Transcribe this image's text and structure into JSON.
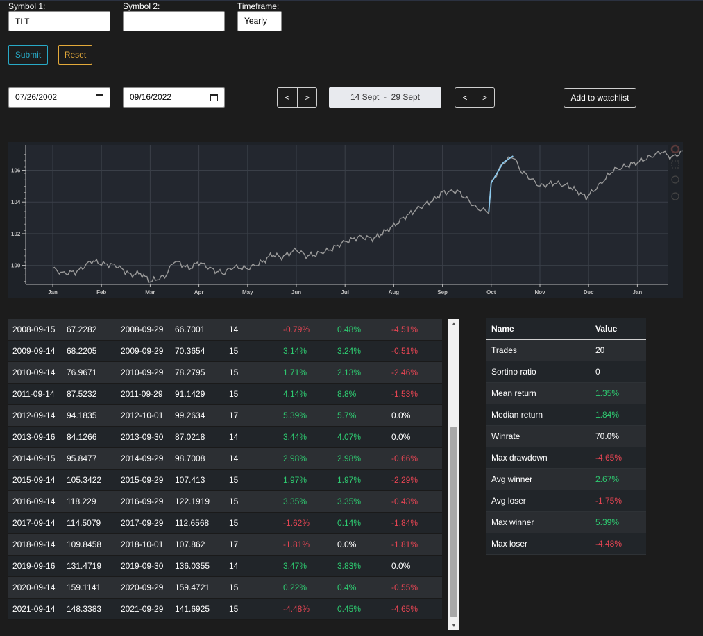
{
  "form": {
    "symbol1_label": "Symbol 1:",
    "symbol1_value": "TLT",
    "symbol2_label": "Symbol 2:",
    "symbol2_value": "",
    "timeframe_label": "Timeframe:",
    "timeframe_value": "Yearly",
    "submit_label": "Submit",
    "reset_label": "Reset",
    "start_date": "07/26/2002",
    "end_date": "09/16/2022",
    "prev_label": "<",
    "next_label": ">",
    "range_display": "14 Sept  -  29 Sept",
    "watchlist_label": "Add to watchlist"
  },
  "chart_data": {
    "type": "line",
    "x_ticks": [
      "Jan",
      "Feb",
      "Mar",
      "Apr",
      "May",
      "Jun",
      "Jul",
      "Aug",
      "Sep",
      "Oct",
      "Nov",
      "Dec",
      "Jan"
    ],
    "y_ticks": [
      100,
      102,
      104,
      106
    ],
    "ylim": [
      98.8,
      107.6
    ],
    "grid": true,
    "series": [
      {
        "color": "#9a9a9a",
        "points": [
          [
            0.0,
            99.8
          ],
          [
            0.2,
            99.5
          ],
          [
            0.5,
            99.6
          ],
          [
            0.8,
            100.3
          ],
          [
            1.0,
            100.1
          ],
          [
            1.3,
            100.0
          ],
          [
            1.6,
            99.4
          ],
          [
            1.8,
            99.5
          ],
          [
            2.0,
            99.0
          ],
          [
            2.3,
            99.3
          ],
          [
            2.5,
            100.3
          ],
          [
            2.8,
            99.8
          ],
          [
            3.0,
            100.2
          ],
          [
            3.3,
            99.7
          ],
          [
            3.5,
            99.5
          ],
          [
            3.7,
            99.9
          ],
          [
            4.0,
            99.8
          ],
          [
            4.3,
            100.2
          ],
          [
            4.5,
            100.7
          ],
          [
            4.7,
            100.5
          ],
          [
            5.0,
            101.0
          ],
          [
            5.2,
            100.6
          ],
          [
            5.4,
            100.7
          ],
          [
            5.7,
            101.0
          ],
          [
            6.0,
            101.5
          ],
          [
            6.3,
            101.8
          ],
          [
            6.6,
            101.7
          ],
          [
            6.8,
            102.1
          ],
          [
            7.0,
            102.5
          ],
          [
            7.2,
            103.0
          ],
          [
            7.5,
            103.6
          ],
          [
            7.8,
            104.1
          ],
          [
            8.0,
            104.6
          ],
          [
            8.3,
            104.7
          ],
          [
            8.5,
            104.2
          ],
          [
            8.7,
            103.6
          ],
          [
            8.95,
            103.4
          ],
          [
            9.0,
            105.2
          ],
          [
            9.25,
            106.5
          ],
          [
            9.45,
            106.9
          ],
          [
            9.6,
            106.0
          ],
          [
            9.8,
            105.5
          ],
          [
            10.0,
            105.0
          ],
          [
            10.3,
            105.2
          ],
          [
            10.6,
            105.0
          ],
          [
            10.8,
            104.6
          ],
          [
            10.95,
            104.3
          ],
          [
            11.2,
            105.0
          ],
          [
            11.5,
            106.0
          ],
          [
            11.8,
            106.3
          ],
          [
            12.0,
            106.5
          ],
          [
            12.3,
            106.9
          ],
          [
            12.5,
            107.2
          ],
          [
            12.7,
            106.8
          ],
          [
            13.0,
            107.3
          ]
        ]
      },
      {
        "color": "#8cc8ec",
        "points": [
          [
            8.95,
            103.4
          ],
          [
            9.0,
            105.2
          ],
          [
            9.25,
            106.5
          ],
          [
            9.45,
            106.9
          ]
        ]
      }
    ]
  },
  "trades": [
    [
      "2008-09-15",
      "67.2282",
      "2008-09-29",
      "66.7001",
      "14",
      "-0.79%",
      "0.48%",
      "-4.51%"
    ],
    [
      "2009-09-14",
      "68.2205",
      "2009-09-29",
      "70.3654",
      "15",
      "3.14%",
      "3.24%",
      "-0.51%"
    ],
    [
      "2010-09-14",
      "76.9671",
      "2010-09-29",
      "78.2795",
      "15",
      "1.71%",
      "2.13%",
      "-2.46%"
    ],
    [
      "2011-09-14",
      "87.5232",
      "2011-09-29",
      "91.1429",
      "15",
      "4.14%",
      "8.8%",
      "-1.53%"
    ],
    [
      "2012-09-14",
      "94.1835",
      "2012-10-01",
      "99.2634",
      "17",
      "5.39%",
      "5.7%",
      "0.0%"
    ],
    [
      "2013-09-16",
      "84.1266",
      "2013-09-30",
      "87.0218",
      "14",
      "3.44%",
      "4.07%",
      "0.0%"
    ],
    [
      "2014-09-15",
      "95.8477",
      "2014-09-29",
      "98.7008",
      "14",
      "2.98%",
      "2.98%",
      "-0.66%"
    ],
    [
      "2015-09-14",
      "105.3422",
      "2015-09-29",
      "107.413",
      "15",
      "1.97%",
      "1.97%",
      "-2.29%"
    ],
    [
      "2016-09-14",
      "118.229",
      "2016-09-29",
      "122.1919",
      "15",
      "3.35%",
      "3.35%",
      "-0.43%"
    ],
    [
      "2017-09-14",
      "114.5079",
      "2017-09-29",
      "112.6568",
      "15",
      "-1.62%",
      "0.14%",
      "-1.84%"
    ],
    [
      "2018-09-14",
      "109.8458",
      "2018-10-01",
      "107.862",
      "17",
      "-1.81%",
      "0.0%",
      "-1.81%"
    ],
    [
      "2019-09-16",
      "131.4719",
      "2019-09-30",
      "136.0355",
      "14",
      "3.47%",
      "3.83%",
      "0.0%"
    ],
    [
      "2020-09-14",
      "159.1141",
      "2020-09-29",
      "159.4721",
      "15",
      "0.22%",
      "0.4%",
      "-0.55%"
    ],
    [
      "2021-09-14",
      "148.3383",
      "2021-09-29",
      "141.6925",
      "15",
      "-4.48%",
      "0.45%",
      "-4.65%"
    ]
  ],
  "stats": {
    "header_name": "Name",
    "header_value": "Value",
    "rows": [
      {
        "name": "Trades",
        "value": "20",
        "tone": "neutral"
      },
      {
        "name": "Sortino ratio",
        "value": "0",
        "tone": "neutral"
      },
      {
        "name": "Mean return",
        "value": "1.35%",
        "tone": "pos"
      },
      {
        "name": "Median return",
        "value": "1.84%",
        "tone": "pos"
      },
      {
        "name": "Winrate",
        "value": "70.0%",
        "tone": "neutral"
      },
      {
        "name": "Max drawdown",
        "value": "-4.65%",
        "tone": "neg"
      },
      {
        "name": "Avg winner",
        "value": "2.67%",
        "tone": "pos"
      },
      {
        "name": "Avg loser",
        "value": "-1.75%",
        "tone": "neg"
      },
      {
        "name": "Max winner",
        "value": "5.39%",
        "tone": "pos"
      },
      {
        "name": "Max loser",
        "value": "-4.48%",
        "tone": "neg"
      }
    ]
  },
  "colors": {
    "positive": "#2ecc71",
    "negative": "#e64553",
    "submit": "#28a9c6",
    "reset": "#e3a93a"
  }
}
